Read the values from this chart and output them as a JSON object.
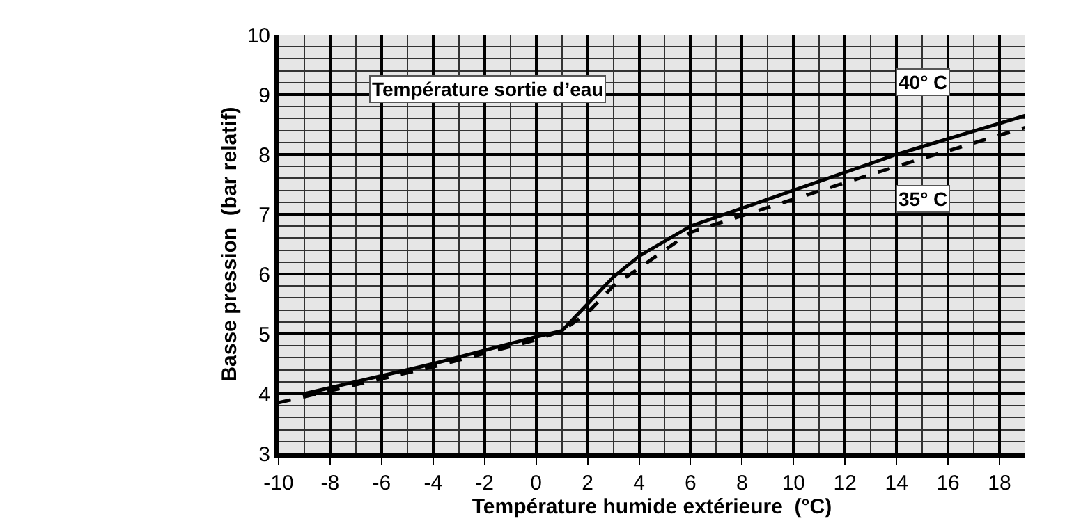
{
  "chart_data": {
    "type": "line",
    "legend_title": "Température sortie d’eau",
    "xlabel": "Température humide extérieure  (°C)",
    "ylabel": "Basse pression  (bar relatif)",
    "series": [
      {
        "name": "40° C",
        "color": "#000000",
        "line_style": "solid",
        "x": [
          -9,
          -4,
          0,
          1,
          2,
          3,
          4,
          6,
          10,
          14,
          19
        ],
        "values": [
          4.0,
          4.5,
          4.95,
          5.05,
          5.5,
          5.95,
          6.3,
          6.8,
          7.4,
          8.0,
          8.65
        ]
      },
      {
        "name": "35° C",
        "color": "#000000",
        "line_style": "dashed",
        "x": [
          -10,
          -4,
          0,
          1,
          2,
          3,
          4,
          6,
          10,
          14,
          19
        ],
        "values": [
          3.85,
          4.45,
          4.9,
          5.05,
          5.35,
          5.8,
          6.1,
          6.7,
          7.25,
          7.8,
          8.45
        ]
      }
    ],
    "xlim": [
      -10,
      19
    ],
    "xticks": [
      -10,
      -8,
      -6,
      -4,
      -2,
      0,
      2,
      4,
      6,
      8,
      10,
      12,
      14,
      16,
      18
    ],
    "ylim": [
      3,
      10
    ],
    "yticks": [
      3,
      4,
      5,
      6,
      7,
      8,
      9,
      10
    ],
    "grid": true,
    "legend": false
  }
}
